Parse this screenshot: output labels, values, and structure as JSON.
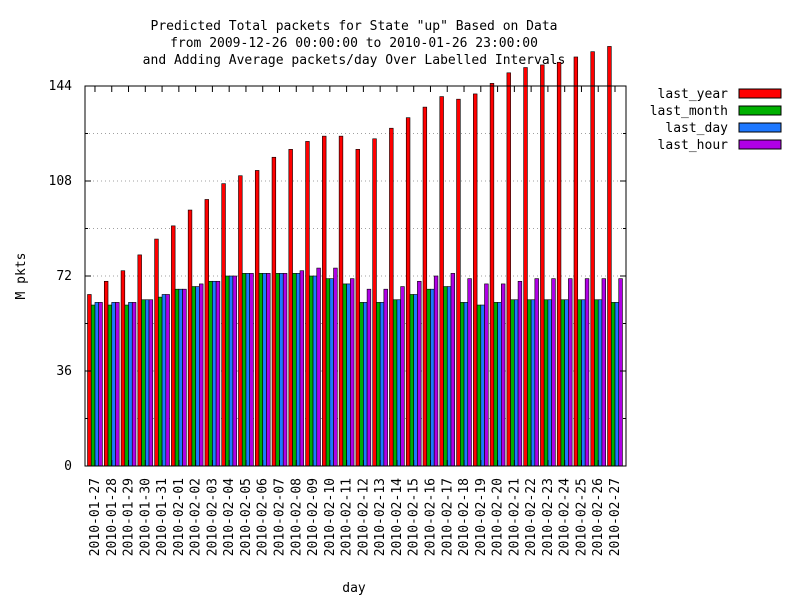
{
  "chart_data": {
    "type": "bar",
    "title_lines": [
      "Predicted Total packets for State \"up\" Based on Data",
      "from 2009-12-26 00:00:00 to 2010-01-26 23:00:00",
      "and Adding Average packets/day Over Labelled Intervals"
    ],
    "xlabel": "day",
    "ylabel": "M pkts",
    "ylim": [
      0,
      144
    ],
    "yticks": [
      0,
      36,
      72,
      108,
      144
    ],
    "grid": true,
    "legend_position": "top-right",
    "categories": [
      "2010-01-27",
      "2010-01-28",
      "2010-01-29",
      "2010-01-30",
      "2010-01-31",
      "2010-02-01",
      "2010-02-02",
      "2010-02-03",
      "2010-02-04",
      "2010-02-05",
      "2010-02-06",
      "2010-02-07",
      "2010-02-08",
      "2010-02-09",
      "2010-02-10",
      "2010-02-11",
      "2010-02-12",
      "2010-02-13",
      "2010-02-14",
      "2010-02-15",
      "2010-02-16",
      "2010-02-17",
      "2010-02-18",
      "2010-02-19",
      "2010-02-20",
      "2010-02-21",
      "2010-02-22",
      "2010-02-23",
      "2010-02-24",
      "2010-02-25",
      "2010-02-26",
      "2010-02-27"
    ],
    "series": [
      {
        "name": "last_year",
        "color": "#ff0000",
        "values": [
          65,
          70,
          74,
          80,
          86,
          91,
          97,
          101,
          107,
          110,
          112,
          117,
          120,
          123,
          125,
          125,
          120,
          124,
          128,
          132,
          136,
          140,
          139,
          141,
          145,
          149,
          151,
          152,
          153,
          155,
          157,
          159
        ]
      },
      {
        "name": "last_month",
        "color": "#00b000",
        "values": [
          61,
          61,
          61,
          63,
          64,
          67,
          68,
          70,
          72,
          73,
          73,
          73,
          73,
          72,
          71,
          69,
          62,
          62,
          63,
          65,
          67,
          68,
          62,
          61,
          62,
          63,
          63,
          63,
          63,
          63,
          63,
          62
        ]
      },
      {
        "name": "last_day",
        "color": "#1e78ff",
        "values": [
          62,
          62,
          62,
          63,
          65,
          67,
          68,
          70,
          72,
          73,
          73,
          73,
          73,
          72,
          71,
          69,
          62,
          62,
          63,
          65,
          67,
          68,
          62,
          61,
          62,
          63,
          63,
          63,
          63,
          63,
          63,
          62
        ]
      },
      {
        "name": "last_hour",
        "color": "#b000e6",
        "values": [
          62,
          62,
          62,
          63,
          65,
          67,
          69,
          70,
          72,
          73,
          73,
          73,
          74,
          75,
          75,
          71,
          67,
          67,
          68,
          70,
          72,
          73,
          71,
          69,
          69,
          70,
          71,
          71,
          71,
          71,
          71,
          71
        ]
      }
    ]
  }
}
